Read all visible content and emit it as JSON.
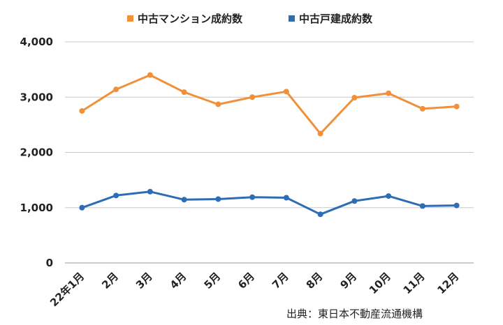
{
  "chart_data": {
    "type": "line",
    "categories": [
      "22年1月",
      "2月",
      "3月",
      "4月",
      "5月",
      "6月",
      "7月",
      "8月",
      "9月",
      "10月",
      "11月",
      "12月"
    ],
    "series": [
      {
        "name": "中古マンション成約数",
        "color": "#f0903a",
        "values": [
          2750,
          3140,
          3400,
          3090,
          2870,
          3000,
          3100,
          2340,
          2990,
          3070,
          2790,
          2830
        ]
      },
      {
        "name": "中古戸建成約数",
        "color": "#2e6db4",
        "values": [
          1000,
          1220,
          1290,
          1145,
          1155,
          1190,
          1180,
          880,
          1120,
          1210,
          1030,
          1040
        ]
      }
    ],
    "yticks": [
      "4,000",
      "3,000",
      "2,000",
      "1,000",
      "0"
    ],
    "ylim": [
      0,
      4000
    ],
    "grid": true,
    "legend_position": "top-center"
  },
  "source": "出典：東日本不動産流通機構"
}
